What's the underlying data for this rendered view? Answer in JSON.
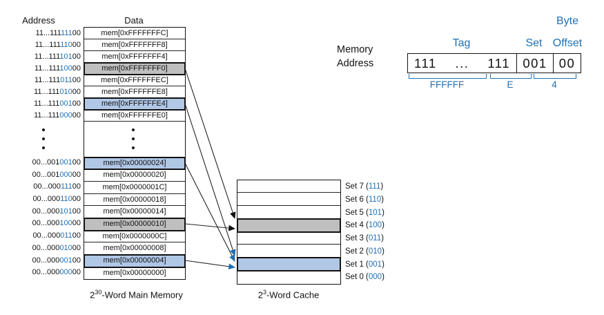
{
  "colors": {
    "blue": "#2070b4",
    "light_blue_fill": "#b0c7e6",
    "gray_fill": "#bfbfbf"
  },
  "memory": {
    "address_header": "Address",
    "data_header": "Data",
    "rows_top": [
      {
        "pre": "11...111",
        "set": "111",
        "post": "00",
        "data": "mem[0xFFFFFFFC]",
        "hl": ""
      },
      {
        "pre": "11...111",
        "set": "110",
        "post": "00",
        "data": "mem[0xFFFFFFF8]",
        "hl": ""
      },
      {
        "pre": "11...111",
        "set": "101",
        "post": "00",
        "data": "mem[0xFFFFFFF4]",
        "hl": ""
      },
      {
        "pre": "11...111",
        "set": "100",
        "post": "00",
        "data": "mem[0xFFFFFFF0]",
        "hl": "gray"
      },
      {
        "pre": "11...111",
        "set": "011",
        "post": "00",
        "data": "mem[0xFFFFFFEC]",
        "hl": ""
      },
      {
        "pre": "11...111",
        "set": "010",
        "post": "00",
        "data": "mem[0xFFFFFFE8]",
        "hl": ""
      },
      {
        "pre": "11...111",
        "set": "001",
        "post": "00",
        "data": "mem[0xFFFFFFE4]",
        "hl": "blue"
      },
      {
        "pre": "11...111",
        "set": "000",
        "post": "00",
        "data": "mem[0xFFFFFFE0]",
        "hl": ""
      }
    ],
    "rows_bottom": [
      {
        "pre": "00...001",
        "set": "001",
        "post": "00",
        "data": "mem[0x00000024]",
        "hl": "blue"
      },
      {
        "pre": "00...001",
        "set": "000",
        "post": "00",
        "data": "mem[0x00000020]",
        "hl": ""
      },
      {
        "pre": "00...000",
        "set": "111",
        "post": "00",
        "data": "mem[0x0000001C]",
        "hl": ""
      },
      {
        "pre": "00...000",
        "set": "110",
        "post": "00",
        "data": "mem[0x00000018]",
        "hl": ""
      },
      {
        "pre": "00...000",
        "set": "101",
        "post": "00",
        "data": "mem[0x00000014]",
        "hl": ""
      },
      {
        "pre": "00...000",
        "set": "100",
        "post": "00",
        "data": "mem[0x00000010]",
        "hl": "gray"
      },
      {
        "pre": "00...000",
        "set": "011",
        "post": "00",
        "data": "mem[0x0000000C]",
        "hl": ""
      },
      {
        "pre": "00...000",
        "set": "010",
        "post": "00",
        "data": "mem[0x00000008]",
        "hl": ""
      },
      {
        "pre": "00...000",
        "set": "001",
        "post": "00",
        "data": "mem[0x00000004]",
        "hl": "blue"
      },
      {
        "pre": "00...000",
        "set": "000",
        "post": "00",
        "data": "mem[0x00000000]",
        "hl": ""
      }
    ],
    "caption_base": "2",
    "caption_exp": "30",
    "caption_rest": "-Word Main Memory"
  },
  "cache": {
    "rows": [
      {
        "prefix": "Set 7 (",
        "bits": "111",
        "suffix": ")",
        "hl": ""
      },
      {
        "prefix": "Set 6 (",
        "bits": "110",
        "suffix": ")",
        "hl": ""
      },
      {
        "prefix": "Set 5 (",
        "bits": "101",
        "suffix": ")",
        "hl": ""
      },
      {
        "prefix": "Set 4 (",
        "bits": "100",
        "suffix": ")",
        "hl": "gray"
      },
      {
        "prefix": "Set 3 (",
        "bits": "011",
        "suffix": ")",
        "hl": ""
      },
      {
        "prefix": "Set 2 (",
        "bits": "010",
        "suffix": ")",
        "hl": ""
      },
      {
        "prefix": "Set 1 (",
        "bits": "001",
        "suffix": ")",
        "hl": "blue"
      },
      {
        "prefix": "Set 0 (",
        "bits": "000",
        "suffix": ")",
        "hl": ""
      }
    ],
    "caption_base": "2",
    "caption_exp": "3",
    "caption_rest": "-Word Cache"
  },
  "address_field": {
    "label_line1": "Memory",
    "label_line2": "Address",
    "tag_label": "Tag",
    "set_label": "Set",
    "byte_label": "Byte",
    "offset_label": "Offset",
    "tag_left": "111",
    "tag_dots": "...",
    "tag_right": "111",
    "set_value": "001",
    "offset_value": "00",
    "hex_tag": "FFFFFF",
    "hex_mid": "E",
    "hex_low": "4"
  }
}
